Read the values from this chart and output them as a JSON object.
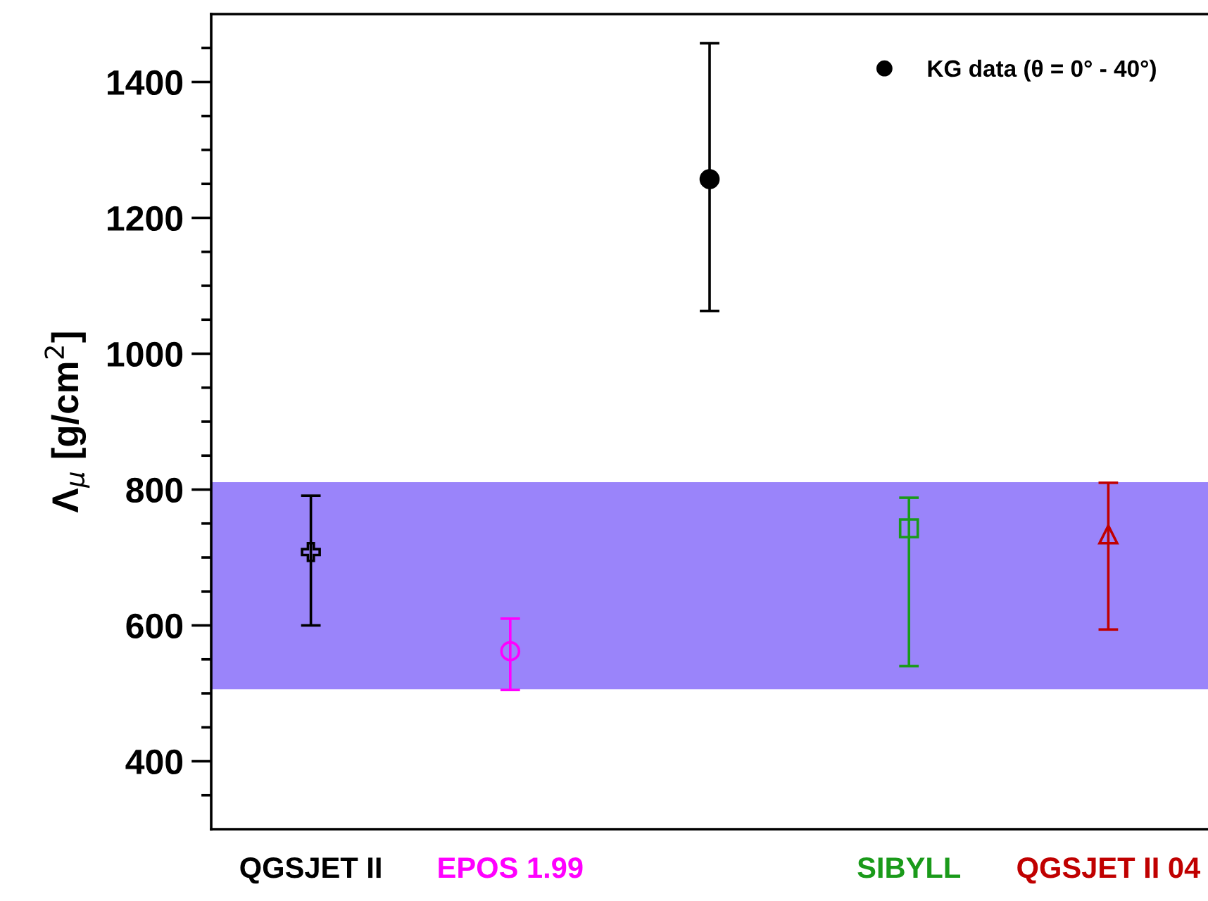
{
  "chart_data": {
    "type": "scatter",
    "ylabel": "Λ$_{μ}$ [g/cm$^{2}$]",
    "categories": [
      "QGSJET II",
      "EPOS 1.99",
      null,
      "SIBYLL",
      "QGSJET II 04"
    ],
    "series": [
      {
        "color": "#000000",
        "marker": "cross",
        "values": [
          708,
          null,
          null,
          null,
          null
        ],
        "errors": [
          [
            600,
            791
          ],
          null,
          null,
          null,
          null
        ]
      },
      {
        "color": "#ff00ff",
        "marker": "circle",
        "values": [
          null,
          562,
          null,
          null,
          null
        ],
        "errors": [
          null,
          [
            505,
            610
          ],
          null,
          null,
          null
        ]
      },
      {
        "name": "KG data (θ = 0° - 40°)",
        "color": "#000000",
        "marker": "circle",
        "values": [
          null,
          null,
          1257,
          null,
          null
        ],
        "errors": [
          null,
          null,
          [
            1063,
            1457
          ],
          null,
          null
        ]
      },
      {
        "color": "#1a9a1a",
        "marker": "square",
        "values": [
          null,
          null,
          null,
          743,
          null
        ],
        "errors": [
          null,
          null,
          null,
          [
            540,
            788
          ],
          null
        ]
      },
      {
        "color": "#c00000",
        "marker": "triangle",
        "values": [
          null,
          null,
          null,
          null,
          734
        ],
        "errors": [
          null,
          null,
          null,
          null,
          [
            594,
            810
          ]
        ]
      }
    ],
    "bands": [
      {
        "axis": "y",
        "from": 506,
        "to": 811,
        "color": "#9a84fa"
      }
    ],
    "ylim": [
      300,
      1500
    ],
    "yticks": [
      400,
      600,
      800,
      1000,
      1200,
      1400
    ],
    "grid": false,
    "legend": "top right"
  }
}
